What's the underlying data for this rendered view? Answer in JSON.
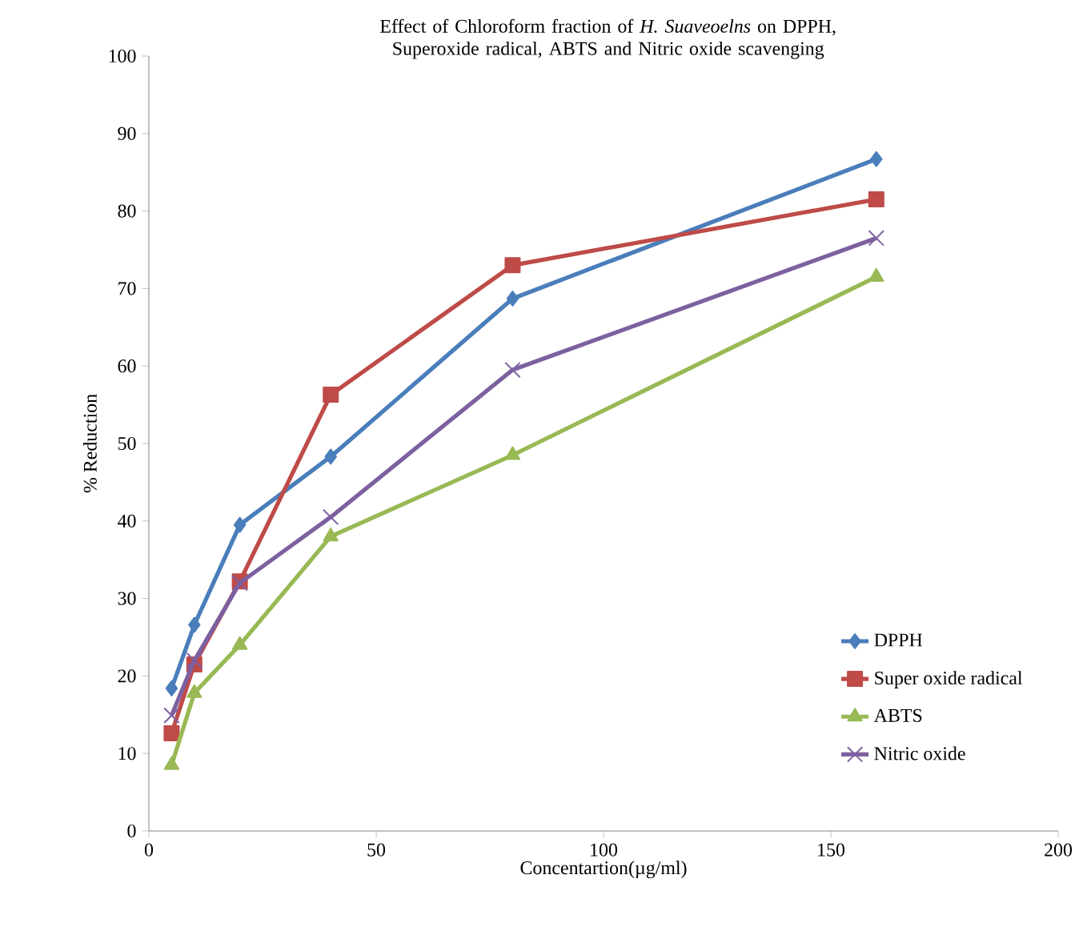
{
  "chart_data": {
    "type": "line",
    "title": "Effect of Chloroform fraction of *H. Suaveoelns* on DPPH, Superoxide radical, ABTS and Nitric oxide scavenging",
    "xlabel": "Concentartion(µg/ml)",
    "ylabel": "% Reduction",
    "x": [
      5,
      10,
      20,
      40,
      80,
      160
    ],
    "series": [
      {
        "name": "DPPH",
        "color": "#4a7ebb",
        "marker": "diamond",
        "values": [
          18.4,
          26.6,
          39.5,
          48.3,
          68.7,
          86.7
        ]
      },
      {
        "name": "Super oxide radical",
        "color": "#be4b48",
        "marker": "square",
        "values": [
          12.6,
          21.5,
          32.2,
          56.3,
          73,
          81.5
        ]
      },
      {
        "name": "ABTS",
        "color": "#98b954",
        "marker": "triangle",
        "values": [
          8.5,
          17.8,
          24,
          38,
          48.5,
          71.5
        ]
      },
      {
        "name": "Nitric oxide",
        "color": "#7d60a0",
        "marker": "cross",
        "values": [
          14.9,
          22,
          32,
          40.5,
          59.5,
          76.5
        ]
      }
    ],
    "xlim": [
      0,
      200
    ],
    "xticks": [
      0,
      50,
      100,
      150,
      200
    ],
    "ylim": [
      0,
      100
    ],
    "yticks": [
      0,
      10,
      20,
      30,
      40,
      50,
      60,
      70,
      80,
      90,
      100
    ],
    "grid": false,
    "legend": "bottom right",
    "line_style": "solid"
  }
}
